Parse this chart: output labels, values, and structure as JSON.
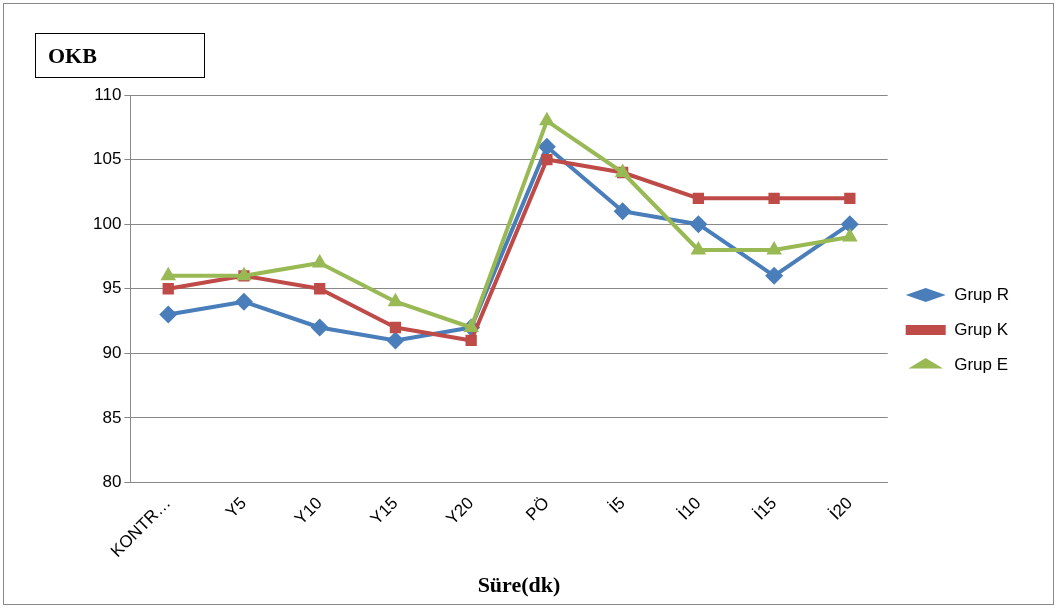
{
  "chart_data": {
    "type": "line",
    "title": "OKB",
    "xlabel": "Süre(dk)",
    "categories": [
      "KONTR…",
      "Y5",
      "Y10",
      "Y15",
      "Y20",
      "PÖ",
      "İ5",
      "İ10",
      "İ15",
      "İ20"
    ],
    "series": [
      {
        "name": "Grup R",
        "color": "#4a7ebb",
        "marker": "diamond",
        "values": [
          93,
          94,
          92,
          91,
          92,
          106,
          101,
          100,
          96,
          100
        ]
      },
      {
        "name": "Grup K",
        "color": "#be4b48",
        "marker": "square",
        "values": [
          95,
          96,
          95,
          92,
          91,
          105,
          104,
          102,
          102,
          102
        ]
      },
      {
        "name": "Grup E",
        "color": "#98b954",
        "marker": "triangle",
        "values": [
          96,
          96,
          97,
          94,
          92,
          108,
          104,
          98,
          98,
          99
        ]
      }
    ],
    "ylim": [
      80,
      110
    ],
    "yticks": [
      80,
      85,
      90,
      95,
      100,
      105,
      110
    ],
    "grid": "y",
    "legend": "right"
  }
}
